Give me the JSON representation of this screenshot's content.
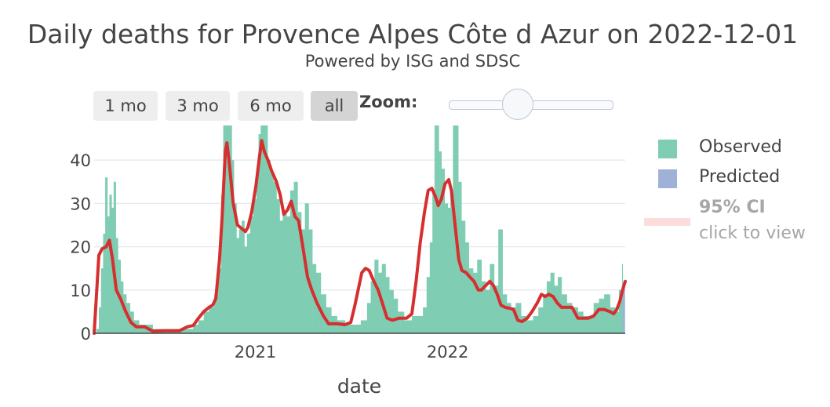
{
  "title": "Daily deaths for Provence Alpes Côte d Azur on 2022-12-01",
  "subtitle": "Powered by ISG and SDSC",
  "range_buttons": [
    "1 mo",
    "3 mo",
    "6 mo",
    "all"
  ],
  "zoom_label": "Zoom:",
  "colors": {
    "observed": "#7fcdb3",
    "predicted": "#9fb1d6",
    "ci": "#fddcdc",
    "trend": "#d62f2f",
    "grid": "#e8ecf1"
  },
  "legend": {
    "observed": "Observed",
    "predicted": "Predicted",
    "ci_name": "95% CI",
    "ci_hint": "click to view"
  },
  "chart_data": {
    "type": "bar",
    "title": "Daily deaths for Provence Alpes Côte d Azur on 2022-12-01",
    "subtitle": "Powered by ISG and SDSC",
    "xlabel": "date",
    "ylabel": "",
    "x_range": [
      "2020-03-01",
      "2022-12-04"
    ],
    "ylim": [
      0,
      48
    ],
    "yticks": [
      0,
      10,
      20,
      30,
      40
    ],
    "xticks": [
      {
        "date": "2021-01-01",
        "label": "2021"
      },
      {
        "date": "2022-01-01",
        "label": "2022"
      }
    ],
    "grid": true,
    "legend_position": "right",
    "series": [
      {
        "name": "Observed",
        "type": "bar",
        "points": [
          [
            "2020-03-05",
            1
          ],
          [
            "2020-03-10",
            6
          ],
          [
            "2020-03-14",
            15
          ],
          [
            "2020-03-18",
            23
          ],
          [
            "2020-03-22",
            36
          ],
          [
            "2020-03-26",
            27
          ],
          [
            "2020-03-30",
            32
          ],
          [
            "2020-04-03",
            29
          ],
          [
            "2020-04-07",
            35
          ],
          [
            "2020-04-11",
            22
          ],
          [
            "2020-04-15",
            17
          ],
          [
            "2020-04-20",
            12
          ],
          [
            "2020-04-25",
            9
          ],
          [
            "2020-05-01",
            7
          ],
          [
            "2020-05-08",
            5
          ],
          [
            "2020-05-15",
            3
          ],
          [
            "2020-05-25",
            2
          ],
          [
            "2020-06-05",
            2
          ],
          [
            "2020-06-20",
            1
          ],
          [
            "2020-07-05",
            1
          ],
          [
            "2020-07-20",
            1
          ],
          [
            "2020-08-05",
            1
          ],
          [
            "2020-08-20",
            1
          ],
          [
            "2020-09-05",
            2
          ],
          [
            "2020-09-15",
            3
          ],
          [
            "2020-09-25",
            5
          ],
          [
            "2020-10-05",
            6
          ],
          [
            "2020-10-15",
            9
          ],
          [
            "2020-10-22",
            15
          ],
          [
            "2020-10-28",
            32
          ],
          [
            "2020-11-01",
            48
          ],
          [
            "2020-11-05",
            48
          ],
          [
            "2020-11-09",
            48
          ],
          [
            "2020-11-13",
            48
          ],
          [
            "2020-11-17",
            40
          ],
          [
            "2020-11-21",
            30
          ],
          [
            "2020-11-26",
            22
          ],
          [
            "2020-12-01",
            24
          ],
          [
            "2020-12-06",
            26
          ],
          [
            "2020-12-11",
            20
          ],
          [
            "2020-12-16",
            23
          ],
          [
            "2020-12-22",
            27
          ],
          [
            "2020-12-28",
            31
          ],
          [
            "2021-01-03",
            38
          ],
          [
            "2021-01-07",
            46
          ],
          [
            "2021-01-11",
            48
          ],
          [
            "2021-01-15",
            48
          ],
          [
            "2021-01-19",
            48
          ],
          [
            "2021-01-24",
            40
          ],
          [
            "2021-01-29",
            37
          ],
          [
            "2021-02-04",
            35
          ],
          [
            "2021-02-10",
            31
          ],
          [
            "2021-02-16",
            26
          ],
          [
            "2021-02-22",
            28
          ],
          [
            "2021-03-01",
            27
          ],
          [
            "2021-03-08",
            33
          ],
          [
            "2021-03-15",
            35
          ],
          [
            "2021-03-22",
            28
          ],
          [
            "2021-03-29",
            24
          ],
          [
            "2021-04-05",
            30
          ],
          [
            "2021-04-12",
            24
          ],
          [
            "2021-04-19",
            16
          ],
          [
            "2021-04-26",
            14
          ],
          [
            "2021-05-05",
            9
          ],
          [
            "2021-05-15",
            6
          ],
          [
            "2021-05-25",
            4
          ],
          [
            "2021-06-05",
            3
          ],
          [
            "2021-06-20",
            2
          ],
          [
            "2021-07-05",
            2
          ],
          [
            "2021-07-20",
            3
          ],
          [
            "2021-08-01",
            7
          ],
          [
            "2021-08-08",
            12
          ],
          [
            "2021-08-15",
            17
          ],
          [
            "2021-08-22",
            14
          ],
          [
            "2021-08-29",
            16
          ],
          [
            "2021-09-05",
            13
          ],
          [
            "2021-09-12",
            10
          ],
          [
            "2021-09-20",
            8
          ],
          [
            "2021-09-28",
            5
          ],
          [
            "2021-10-10",
            3
          ],
          [
            "2021-10-25",
            4
          ],
          [
            "2021-11-05",
            4
          ],
          [
            "2021-11-15",
            6
          ],
          [
            "2021-11-22",
            13
          ],
          [
            "2021-11-28",
            21
          ],
          [
            "2021-12-03",
            33
          ],
          [
            "2021-12-07",
            48
          ],
          [
            "2021-12-11",
            48
          ],
          [
            "2021-12-15",
            42
          ],
          [
            "2021-12-20",
            38
          ],
          [
            "2021-12-26",
            30
          ],
          [
            "2022-01-01",
            29
          ],
          [
            "2022-01-06",
            33
          ],
          [
            "2022-01-11",
            48
          ],
          [
            "2022-01-16",
            48
          ],
          [
            "2022-01-21",
            35
          ],
          [
            "2022-01-27",
            26
          ],
          [
            "2022-02-03",
            21
          ],
          [
            "2022-02-10",
            15
          ],
          [
            "2022-02-18",
            14
          ],
          [
            "2022-02-26",
            17
          ],
          [
            "2022-03-06",
            12
          ],
          [
            "2022-03-14",
            10
          ],
          [
            "2022-03-22",
            16
          ],
          [
            "2022-03-30",
            11
          ],
          [
            "2022-04-07",
            24
          ],
          [
            "2022-04-15",
            9
          ],
          [
            "2022-04-23",
            7
          ],
          [
            "2022-05-01",
            6
          ],
          [
            "2022-05-10",
            7
          ],
          [
            "2022-05-20",
            4
          ],
          [
            "2022-06-01",
            3
          ],
          [
            "2022-06-12",
            4
          ],
          [
            "2022-06-22",
            6
          ],
          [
            "2022-07-01",
            9
          ],
          [
            "2022-07-08",
            12
          ],
          [
            "2022-07-15",
            14
          ],
          [
            "2022-07-22",
            11
          ],
          [
            "2022-07-29",
            13
          ],
          [
            "2022-08-05",
            9
          ],
          [
            "2022-08-15",
            7
          ],
          [
            "2022-08-25",
            6
          ],
          [
            "2022-09-05",
            5
          ],
          [
            "2022-09-15",
            4
          ],
          [
            "2022-09-25",
            4
          ],
          [
            "2022-10-05",
            7
          ],
          [
            "2022-10-15",
            8
          ],
          [
            "2022-10-25",
            9
          ],
          [
            "2022-11-05",
            6
          ],
          [
            "2022-11-15",
            5
          ],
          [
            "2022-11-22",
            10
          ],
          [
            "2022-11-28",
            16
          ]
        ]
      },
      {
        "name": "Predicted",
        "type": "bar",
        "points": [
          [
            "2022-11-29",
            11
          ],
          [
            "2022-11-30",
            12
          ],
          [
            "2022-12-01",
            12
          ],
          [
            "2022-12-02",
            12
          ]
        ]
      },
      {
        "name": "trend",
        "type": "line",
        "points": [
          [
            "2020-03-01",
            0
          ],
          [
            "2020-03-05",
            8
          ],
          [
            "2020-03-10",
            18
          ],
          [
            "2020-03-16",
            19.5
          ],
          [
            "2020-03-24",
            20
          ],
          [
            "2020-03-30",
            21.5
          ],
          [
            "2020-04-05",
            17
          ],
          [
            "2020-04-12",
            10
          ],
          [
            "2020-04-20",
            8
          ],
          [
            "2020-04-30",
            5
          ],
          [
            "2020-05-10",
            2.5
          ],
          [
            "2020-05-20",
            1.5
          ],
          [
            "2020-06-05",
            1.5
          ],
          [
            "2020-06-20",
            0.5
          ],
          [
            "2020-07-15",
            0.6
          ],
          [
            "2020-08-10",
            0.6
          ],
          [
            "2020-08-25",
            1.5
          ],
          [
            "2020-09-05",
            1.8
          ],
          [
            "2020-09-15",
            3.5
          ],
          [
            "2020-09-25",
            5
          ],
          [
            "2020-10-05",
            6
          ],
          [
            "2020-10-12",
            6.5
          ],
          [
            "2020-10-18",
            8
          ],
          [
            "2020-10-25",
            17
          ],
          [
            "2020-10-30",
            27
          ],
          [
            "2020-11-05",
            42
          ],
          [
            "2020-11-08",
            44
          ],
          [
            "2020-11-12",
            40
          ],
          [
            "2020-11-20",
            30
          ],
          [
            "2020-11-28",
            25
          ],
          [
            "2020-12-03",
            24.5
          ],
          [
            "2020-12-08",
            24
          ],
          [
            "2020-12-13",
            23.5
          ],
          [
            "2020-12-18",
            24.5
          ],
          [
            "2020-12-25",
            28
          ],
          [
            "2021-01-02",
            34
          ],
          [
            "2021-01-09",
            41
          ],
          [
            "2021-01-13",
            44.5
          ],
          [
            "2021-01-18",
            42
          ],
          [
            "2021-01-25",
            40
          ],
          [
            "2021-02-01",
            37.5
          ],
          [
            "2021-02-10",
            35
          ],
          [
            "2021-02-17",
            32
          ],
          [
            "2021-02-24",
            27.5
          ],
          [
            "2021-03-03",
            28.5
          ],
          [
            "2021-03-10",
            30.5
          ],
          [
            "2021-03-17",
            27
          ],
          [
            "2021-03-24",
            26
          ],
          [
            "2021-04-01",
            20
          ],
          [
            "2021-04-10",
            13
          ],
          [
            "2021-04-18",
            10
          ],
          [
            "2021-04-28",
            7
          ],
          [
            "2021-05-10",
            4
          ],
          [
            "2021-05-20",
            2.2
          ],
          [
            "2021-06-05",
            2.2
          ],
          [
            "2021-06-20",
            2
          ],
          [
            "2021-07-01",
            2.5
          ],
          [
            "2021-07-08",
            6
          ],
          [
            "2021-07-15",
            10
          ],
          [
            "2021-07-22",
            14
          ],
          [
            "2021-07-29",
            15
          ],
          [
            "2021-08-05",
            14.5
          ],
          [
            "2021-08-14",
            12
          ],
          [
            "2021-08-22",
            10
          ],
          [
            "2021-08-30",
            7
          ],
          [
            "2021-09-08",
            3.5
          ],
          [
            "2021-09-18",
            3
          ],
          [
            "2021-10-01",
            3.5
          ],
          [
            "2021-10-15",
            3.5
          ],
          [
            "2021-10-25",
            4.5
          ],
          [
            "2021-11-02",
            12
          ],
          [
            "2021-11-10",
            21
          ],
          [
            "2021-11-18",
            28
          ],
          [
            "2021-11-25",
            33
          ],
          [
            "2021-12-02",
            33.5
          ],
          [
            "2021-12-09",
            31.5
          ],
          [
            "2021-12-14",
            29.5
          ],
          [
            "2021-12-20",
            31
          ],
          [
            "2021-12-27",
            34.5
          ],
          [
            "2022-01-03",
            35.5
          ],
          [
            "2022-01-08",
            33
          ],
          [
            "2022-01-15",
            25
          ],
          [
            "2022-01-22",
            17
          ],
          [
            "2022-01-28",
            14.5
          ],
          [
            "2022-02-05",
            14
          ],
          [
            "2022-02-12",
            13
          ],
          [
            "2022-02-20",
            12
          ],
          [
            "2022-02-28",
            10
          ],
          [
            "2022-03-06",
            10
          ],
          [
            "2022-03-14",
            11
          ],
          [
            "2022-03-22",
            12
          ],
          [
            "2022-03-29",
            11
          ],
          [
            "2022-04-05",
            9
          ],
          [
            "2022-04-12",
            6.5
          ],
          [
            "2022-04-20",
            6
          ],
          [
            "2022-04-28",
            5.8
          ],
          [
            "2022-05-06",
            5.5
          ],
          [
            "2022-05-14",
            3
          ],
          [
            "2022-05-22",
            2.7
          ],
          [
            "2022-06-01",
            3.5
          ],
          [
            "2022-06-10",
            5
          ],
          [
            "2022-06-20",
            7
          ],
          [
            "2022-06-28",
            9
          ],
          [
            "2022-07-05",
            8.5
          ],
          [
            "2022-07-12",
            9
          ],
          [
            "2022-07-20",
            8.5
          ],
          [
            "2022-07-28",
            7
          ],
          [
            "2022-08-05",
            6
          ],
          [
            "2022-08-15",
            6
          ],
          [
            "2022-08-25",
            6
          ],
          [
            "2022-09-05",
            3.5
          ],
          [
            "2022-09-15",
            3.5
          ],
          [
            "2022-09-25",
            3.5
          ],
          [
            "2022-10-05",
            4
          ],
          [
            "2022-10-15",
            5.5
          ],
          [
            "2022-10-25",
            5.5
          ],
          [
            "2022-11-05",
            5
          ],
          [
            "2022-11-12",
            4.5
          ],
          [
            "2022-11-18",
            5.5
          ],
          [
            "2022-11-24",
            7.5
          ],
          [
            "2022-11-29",
            10
          ],
          [
            "2022-12-04",
            12
          ]
        ]
      }
    ]
  }
}
